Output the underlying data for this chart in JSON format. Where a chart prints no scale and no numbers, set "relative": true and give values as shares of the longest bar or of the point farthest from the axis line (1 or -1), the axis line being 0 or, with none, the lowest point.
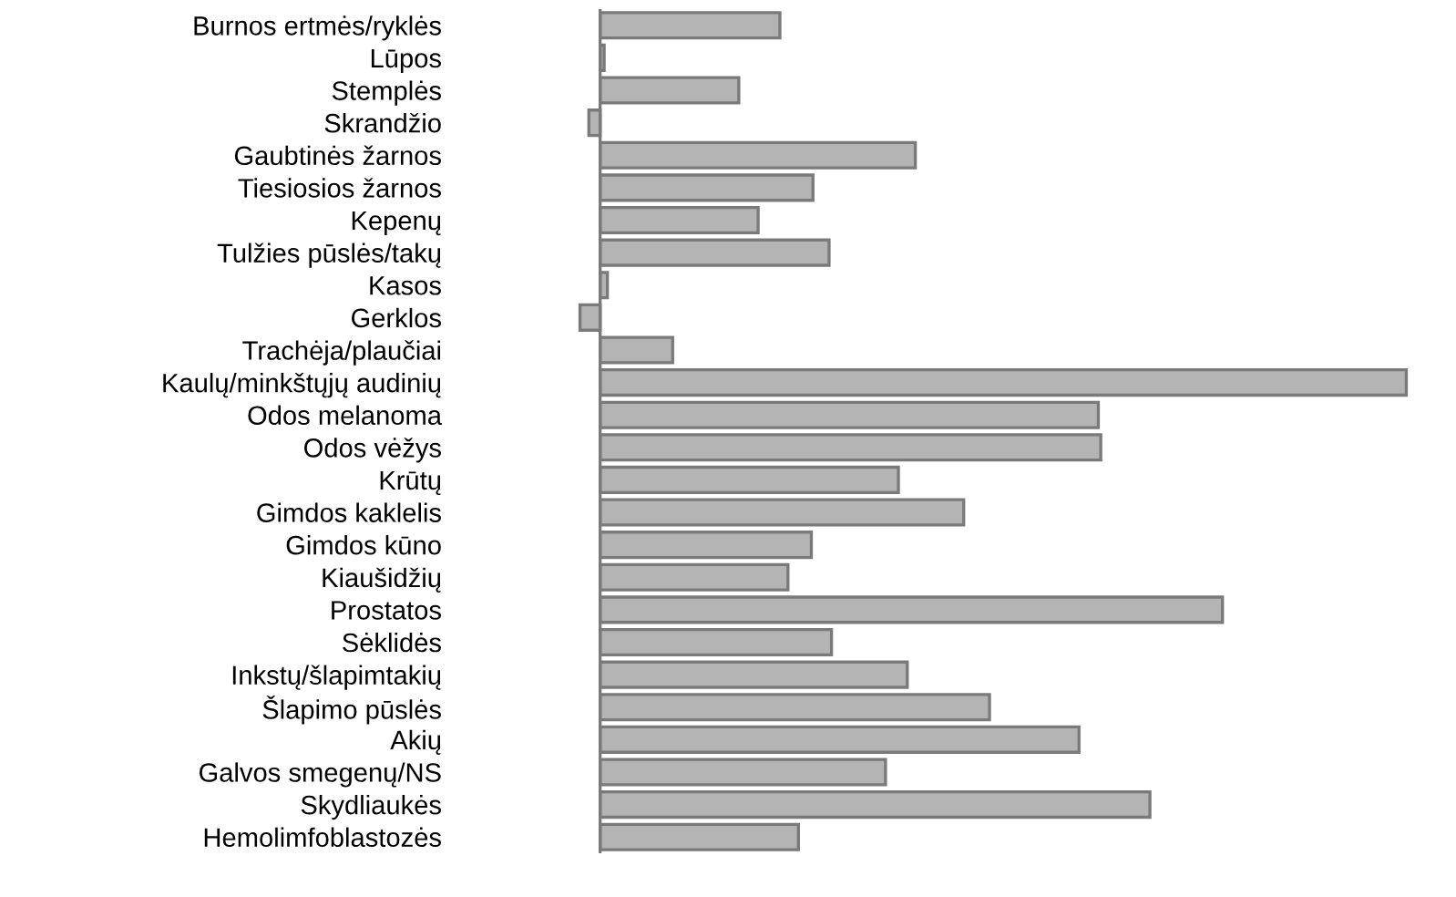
{
  "chart_data": {
    "type": "bar",
    "orientation": "horizontal",
    "relative": true,
    "categories": [
      "Burnos ertmės/ryklės",
      "Lūpos",
      "Stemplės",
      "Skrandžio",
      "Gaubtinės žarnos",
      "Tiesiosios žarnos",
      "Kepenų",
      "Tulžies pūslės/takų",
      "Kasos",
      "Gerklos",
      "Trachėja/plaučiai",
      "Kaulų/minkštųjų audinių",
      "Odos melanoma",
      "Odos vėžys",
      "Krūtų",
      "Gimdos kaklelis",
      "Gimdos kūno",
      "Kiaušidžių",
      "Prostatos",
      "Sėklidės",
      "Inkstų/šlapimtakių",
      "Šlapimo pūslės",
      "Akių",
      "Galvos smegenų/NS",
      "Skydliaukės",
      "Hemolimfoblastozės"
    ],
    "values": [
      0.223,
      0.005,
      0.172,
      -0.014,
      0.391,
      0.264,
      0.196,
      0.284,
      0.009,
      -0.025,
      0.09,
      1,
      0.618,
      0.621,
      0.37,
      0.451,
      0.262,
      0.233,
      0.772,
      0.287,
      0.381,
      0.483,
      0.594,
      0.354,
      0.682,
      0.246
    ],
    "color": "#b4b4b4",
    "grid": false,
    "legend": false
  }
}
